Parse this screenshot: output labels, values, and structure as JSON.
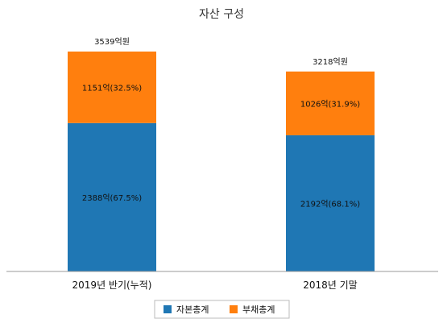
{
  "chart_data": {
    "type": "bar",
    "stacked": true,
    "title": "자산 구성",
    "categories": [
      "2019년 반기(누적)",
      "2018년 기말"
    ],
    "series": [
      {
        "name": "자본총계",
        "values": [
          2388,
          2192
        ],
        "labels": [
          "2388억(67.5%)",
          "2192억(68.1%)"
        ],
        "color": "#1f77b4"
      },
      {
        "name": "부채총계",
        "values": [
          1151,
          1026
        ],
        "labels": [
          "1151억(32.5%)",
          "1026억(31.9%)"
        ],
        "color": "#ff7f0e"
      }
    ],
    "totals": [
      3539,
      3218
    ],
    "total_labels": [
      "3539억원",
      "3218억원"
    ],
    "ylim": [
      0,
      3539
    ],
    "grid": false,
    "legend": "bottom",
    "axis_color": "#999999"
  }
}
